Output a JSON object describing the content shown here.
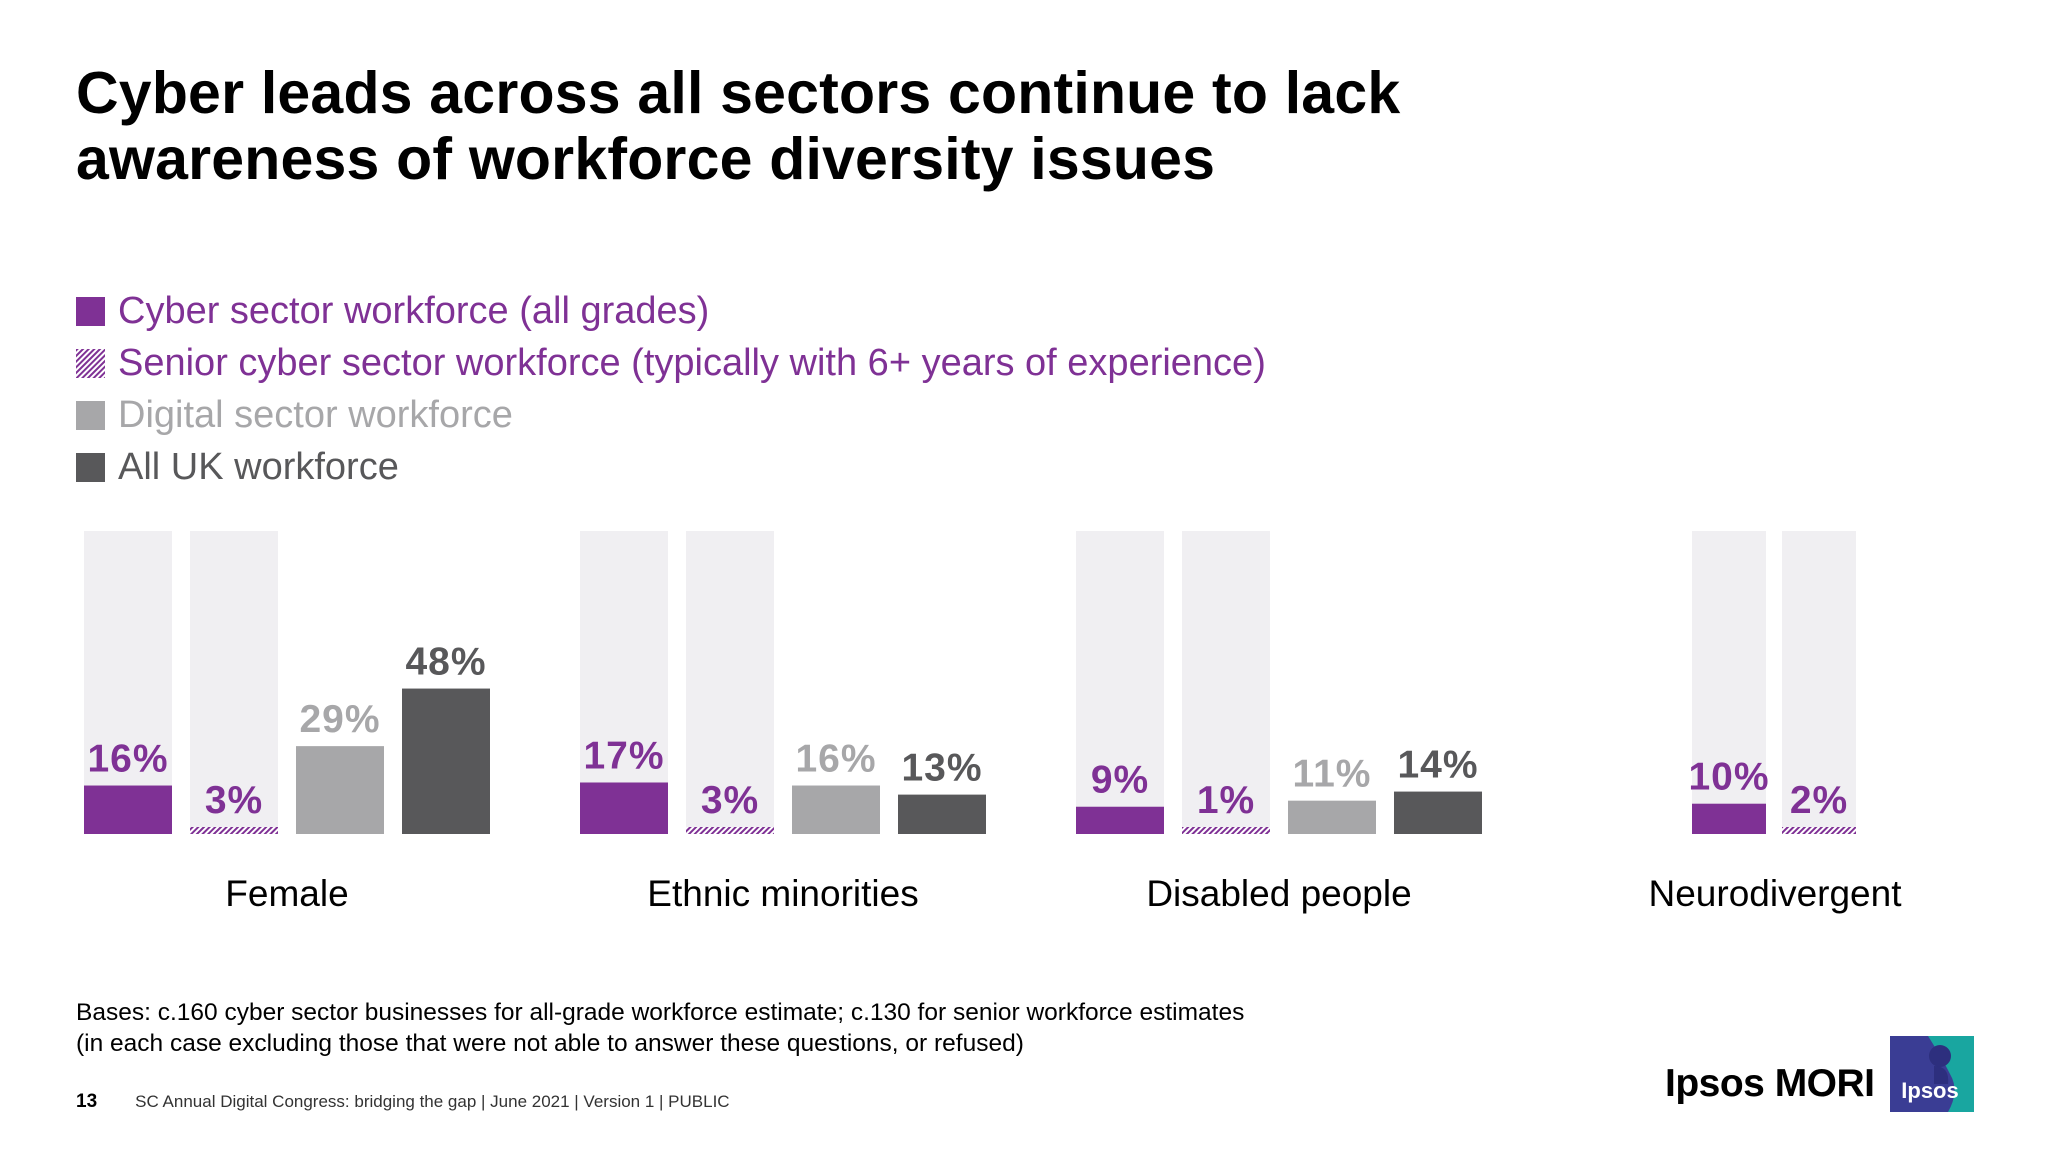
{
  "title": "Cyber leads across all sectors continue to lack awareness of workforce diversity issues",
  "legend": [
    {
      "label": "Cyber sector workforce (all grades)",
      "color": "#7f3195",
      "pattern": "solid",
      "text_color": "#7f3195"
    },
    {
      "label": "Senior cyber sector workforce (typically with 6+ years of experience)",
      "color": "#7f3195",
      "pattern": "hatched",
      "text_color": "#7f3195"
    },
    {
      "label": "Digital sector workforce",
      "color": "#a7a7a9",
      "pattern": "solid",
      "text_color": "#a7a7a9"
    },
    {
      "label": "All UK workforce",
      "color": "#58585a",
      "pattern": "solid",
      "text_color": "#58585a"
    }
  ],
  "chart_data": {
    "type": "bar",
    "categories": [
      "Female",
      "Ethnic minorities",
      "Disabled people",
      "Neurodivergent"
    ],
    "series": [
      {
        "name": "Cyber sector workforce (all grades)",
        "values": [
          16,
          17,
          9,
          10
        ],
        "labels": [
          "16%",
          "17%",
          "9%",
          "10%"
        ],
        "color": "#7f3195",
        "pattern": "solid",
        "track": true
      },
      {
        "name": "Senior cyber sector workforce (typically with 6+ years of experience)",
        "values": [
          3,
          3,
          1,
          2
        ],
        "labels": [
          "3%",
          "3%",
          "1%",
          "2%"
        ],
        "color": "#7f3195",
        "pattern": "hatched",
        "track": true
      },
      {
        "name": "Digital sector workforce",
        "values": [
          29,
          16,
          11,
          null
        ],
        "labels": [
          "29%",
          "16%",
          "11%",
          null
        ],
        "color": "#a7a7a9",
        "pattern": "solid",
        "track": false
      },
      {
        "name": "All UK workforce",
        "values": [
          48,
          13,
          14,
          null
        ],
        "labels": [
          "48%",
          "13%",
          "14%",
          null
        ],
        "color": "#58585a",
        "pattern": "solid",
        "track": false
      }
    ],
    "ylim": [
      0,
      100
    ],
    "track_color": "#f0eff2",
    "xlabel": "",
    "ylabel": "",
    "grid": false,
    "legend_position": "top-left"
  },
  "bases_line1": "Bases: c.160 cyber sector businesses for all-grade workforce estimate; c.130 for senior workforce estimates",
  "bases_line2": "(in each case excluding those that were not able to answer these questions, or refused)",
  "footer": {
    "page_number": "13",
    "text": "SC Annual Digital Congress: bridging the gap | June 2021 | Version 1 | PUBLIC"
  },
  "brand": "Ipsos MORI",
  "logo_text": "Ipsos"
}
